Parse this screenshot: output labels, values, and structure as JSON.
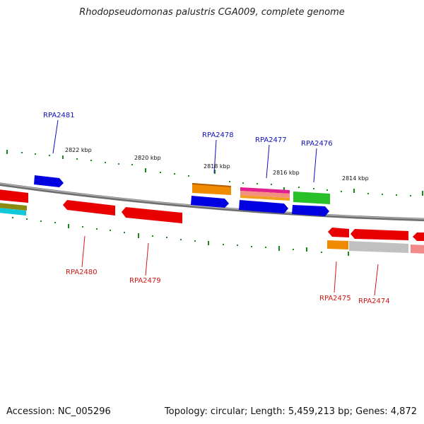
{
  "title": "Rhodopseudomonas palustris CGA009, complete genome",
  "footer": {
    "accession": "Accession: NC_005296",
    "summary": "Topology: circular; Length: 5,459,213 bp; Genes: 4,872"
  },
  "ruler": {
    "ticks": [
      "2822 kbp",
      "2820 kbp",
      "2818 kbp",
      "2816 kbp",
      "2814 kbp"
    ]
  },
  "genes": {
    "upper": [
      {
        "label": "RPA2481",
        "color": "#1010c0"
      },
      {
        "label": "RPA2478",
        "color": "#1010c0"
      },
      {
        "label": "RPA2477",
        "color": "#1010c0"
      },
      {
        "label": "RPA2476",
        "color": "#1010c0"
      }
    ],
    "lower": [
      {
        "label": "RPA2480",
        "color": "#d01818"
      },
      {
        "label": "RPA2479",
        "color": "#d01818"
      },
      {
        "label": "RPA2475",
        "color": "#d01818"
      },
      {
        "label": "RPA2474",
        "color": "#d01818"
      }
    ]
  },
  "colors": {
    "backbone": "#808080",
    "forward_genes": "#0000e0",
    "reverse_genes": "#e80000",
    "tick_marks": "#1a8a1a",
    "orange": "#f08a00",
    "green": "#28c028",
    "grey": "#c0c0c0",
    "pink": "#f28a8a",
    "magenta": "#e0208c",
    "cyan": "#10c8d8",
    "olive": "#8a8a10"
  }
}
